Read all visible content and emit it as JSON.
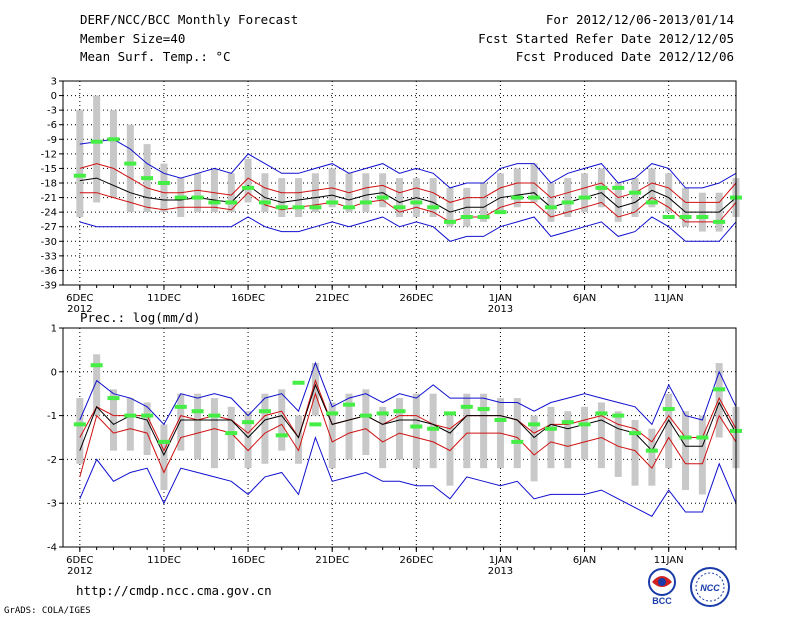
{
  "header": {
    "title": "DERF/NCC/BCC Monthly Forecast",
    "member_size": "Member Size=40",
    "variable": "Mean Surf. Temp.: °C",
    "period": "For 2012/12/06-2013/01/14",
    "fcst_started": "Fcst Started Refer Date 2012/12/05",
    "fcst_produced": "Fcst Produced Date 2012/12/06"
  },
  "footer": {
    "url": "http://cmdp.ncc.cma.gov.cn",
    "credit": "GrADS: COLA/IGES",
    "logo_bcc": "BCC",
    "logo_ncc": "NCC"
  },
  "colors": {
    "outer": "#1010d0",
    "inner": "#d01010",
    "mean": "#000000",
    "box": "#c8c8c8",
    "obs": "#44ee44"
  },
  "chart_data": [
    {
      "type": "line",
      "title": "Mean Surf. Temp.: °C",
      "ylim": [
        -39,
        3
      ],
      "yticks": [
        "3",
        "0",
        "-3",
        "-6",
        "-9",
        "-12",
        "-15",
        "-18",
        "-21",
        "-24",
        "-27",
        "-30",
        "-33",
        "-36",
        "-39"
      ],
      "xlim": [
        0,
        40
      ],
      "xticks": [
        {
          "day": 1,
          "label": "6DEC",
          "sub": "2012"
        },
        {
          "day": 6,
          "label": "11DEC"
        },
        {
          "day": 11,
          "label": "16DEC"
        },
        {
          "day": 16,
          "label": "21DEC"
        },
        {
          "day": 21,
          "label": "26DEC"
        },
        {
          "day": 26,
          "label": "1JAN",
          "sub": "2013"
        },
        {
          "day": 31,
          "label": "6JAN"
        },
        {
          "day": 36,
          "label": "11JAN"
        }
      ],
      "days": [
        1,
        2,
        3,
        4,
        5,
        6,
        7,
        8,
        9,
        10,
        11,
        12,
        13,
        14,
        15,
        16,
        17,
        18,
        19,
        20,
        21,
        22,
        23,
        24,
        25,
        26,
        27,
        28,
        29,
        30,
        31,
        32,
        33,
        34,
        35,
        36,
        37,
        38,
        39,
        40
      ],
      "series": [
        {
          "name": "upper_outer",
          "values": [
            -10,
            -9.5,
            -9,
            -11,
            -14,
            -16,
            -17,
            -16,
            -15,
            -16,
            -12,
            -14,
            -16,
            -16,
            -15,
            -14,
            -16,
            -15,
            -14,
            -16,
            -15,
            -16,
            -19,
            -18,
            -18,
            -15,
            -14,
            -14,
            -18,
            -16,
            -15,
            -14,
            -18,
            -17,
            -14,
            -15,
            -19,
            -19,
            -18,
            -16
          ]
        },
        {
          "name": "upper_inner",
          "values": [
            -15,
            -14,
            -15,
            -17,
            -19,
            -20,
            -20,
            -19.5,
            -20,
            -20.5,
            -17,
            -19,
            -20,
            -20,
            -19.5,
            -19,
            -20,
            -19,
            -18.5,
            -20,
            -19,
            -20,
            -22,
            -21,
            -21,
            -19,
            -18,
            -18,
            -21,
            -20,
            -19,
            -18,
            -21,
            -20,
            -18,
            -19,
            -22,
            -22,
            -22,
            -18
          ]
        },
        {
          "name": "mean",
          "values": [
            -17.5,
            -17,
            -18.5,
            -20,
            -21,
            -21.5,
            -21.5,
            -21,
            -21.5,
            -22,
            -18.5,
            -21,
            -22,
            -21.5,
            -21,
            -20.5,
            -21.5,
            -20.5,
            -20,
            -22,
            -21,
            -22,
            -24,
            -23,
            -23,
            -21,
            -20.5,
            -20,
            -23,
            -22,
            -21,
            -20,
            -23,
            -22,
            -19.5,
            -21,
            -24,
            -24,
            -24,
            -21
          ]
        },
        {
          "name": "lower_inner",
          "values": [
            -20,
            -20,
            -21,
            -22,
            -23,
            -23.5,
            -23,
            -23,
            -23,
            -23.5,
            -20,
            -22.5,
            -23.5,
            -23,
            -22.5,
            -22,
            -23,
            -22,
            -21.5,
            -24,
            -23,
            -24,
            -26,
            -25,
            -25,
            -23,
            -22,
            -22,
            -25,
            -24,
            -23,
            -22,
            -25,
            -24,
            -21,
            -23,
            -26,
            -26,
            -26,
            -22
          ]
        },
        {
          "name": "lower_outer",
          "values": [
            -26,
            -27,
            -27,
            -27,
            -27,
            -27,
            -27,
            -27,
            -27,
            -27,
            -25,
            -27,
            -28,
            -28,
            -27,
            -26,
            -27,
            -26,
            -25,
            -27,
            -26,
            -27,
            -30,
            -29,
            -29,
            -27,
            -26,
            -25,
            -29,
            -28,
            -27,
            -26,
            -29,
            -28,
            -25,
            -27,
            -30,
            -30,
            -30,
            -26
          ]
        }
      ],
      "box_ranges": [
        [
          -25,
          -3
        ],
        [
          -22,
          0
        ],
        [
          -21,
          -3
        ],
        [
          -24,
          -6
        ],
        [
          -24,
          -10
        ],
        [
          -24,
          -14
        ],
        [
          -25,
          -17
        ],
        [
          -24,
          -16
        ],
        [
          -24,
          -15
        ],
        [
          -24,
          -16
        ],
        [
          -22,
          -13
        ],
        [
          -24,
          -16
        ],
        [
          -25,
          -17
        ],
        [
          -25,
          -17
        ],
        [
          -24,
          -16
        ],
        [
          -23,
          -15
        ],
        [
          -24,
          -16
        ],
        [
          -24,
          -16
        ],
        [
          -23,
          -16
        ],
        [
          -25,
          -17
        ],
        [
          -25,
          -17
        ],
        [
          -25,
          -17
        ],
        [
          -27,
          -19
        ],
        [
          -27,
          -19
        ],
        [
          -26,
          -18
        ],
        [
          -24,
          -16
        ],
        [
          -23,
          -15
        ],
        [
          -22,
          -14
        ],
        [
          -26,
          -18
        ],
        [
          -25,
          -17
        ],
        [
          -24,
          -16
        ],
        [
          -23,
          -15
        ],
        [
          -26,
          -18
        ],
        [
          -25,
          -17
        ],
        [
          -23,
          -15
        ],
        [
          -24,
          -16
        ],
        [
          -27,
          -19
        ],
        [
          -28,
          -20
        ],
        [
          -28,
          -20
        ],
        [
          -25,
          -17
        ]
      ],
      "observed": [
        -16.5,
        -9.5,
        -9,
        -14,
        -17,
        -18,
        -21,
        -21,
        -22,
        -22,
        -19,
        -22,
        -23,
        -23,
        -23,
        -22,
        -23,
        -22,
        -21,
        -23,
        -22,
        -23,
        -26,
        -25,
        -25,
        -24,
        -21,
        -21,
        -23,
        -22,
        -21,
        -19,
        -19,
        -20,
        -22,
        -25,
        -25,
        -25,
        -26,
        -21
      ]
    },
    {
      "type": "line",
      "title": "Prec.: log(mm/d)",
      "ylim": [
        -4,
        1
      ],
      "yticks": [
        "1",
        "0",
        "-1",
        "-2",
        "-3",
        "-4"
      ],
      "xlim": [
        0,
        40
      ],
      "xticks": [
        {
          "day": 1,
          "label": "6DEC",
          "sub": "2012"
        },
        {
          "day": 6,
          "label": "11DEC"
        },
        {
          "day": 11,
          "label": "16DEC"
        },
        {
          "day": 16,
          "label": "21DEC"
        },
        {
          "day": 21,
          "label": "26DEC"
        },
        {
          "day": 26,
          "label": "1JAN",
          "sub": "2013"
        },
        {
          "day": 31,
          "label": "6JAN"
        },
        {
          "day": 36,
          "label": "11JAN"
        }
      ],
      "days": [
        1,
        2,
        3,
        4,
        5,
        6,
        7,
        8,
        9,
        10,
        11,
        12,
        13,
        14,
        15,
        16,
        17,
        18,
        19,
        20,
        21,
        22,
        23,
        24,
        25,
        26,
        27,
        28,
        29,
        30,
        31,
        32,
        33,
        34,
        35,
        36,
        37,
        38,
        39,
        40
      ],
      "series": [
        {
          "name": "upper_outer",
          "values": [
            -1.1,
            -0.2,
            -0.5,
            -0.6,
            -0.8,
            -1.2,
            -0.5,
            -0.6,
            -0.5,
            -0.6,
            -1.0,
            -0.6,
            -0.5,
            -0.9,
            0.2,
            -0.8,
            -0.6,
            -0.5,
            -0.7,
            -0.5,
            -0.6,
            -0.3,
            -0.6,
            -0.6,
            -0.6,
            -0.7,
            -0.7,
            -0.9,
            -0.7,
            -0.6,
            -0.5,
            -0.6,
            -0.7,
            -0.8,
            -1.2,
            -0.3,
            -1.0,
            -1.1,
            0.0,
            -0.8
          ]
        },
        {
          "name": "upper_inner",
          "values": [
            -1.5,
            -0.8,
            -1.0,
            -1.0,
            -1.0,
            -1.8,
            -1.0,
            -1.1,
            -1.0,
            -1.1,
            -1.4,
            -1.0,
            -0.9,
            -1.5,
            -0.2,
            -1.2,
            -1.1,
            -1.0,
            -1.2,
            -1.0,
            -1.0,
            -1.2,
            -1.3,
            -1.0,
            -1.0,
            -1.0,
            -1.1,
            -1.4,
            -1.2,
            -1.2,
            -1.1,
            -1.0,
            -1.2,
            -1.3,
            -1.6,
            -1.0,
            -1.5,
            -1.5,
            -0.6,
            -1.3
          ]
        },
        {
          "name": "mean",
          "values": [
            -1.8,
            -0.8,
            -1.2,
            -1.0,
            -1.1,
            -1.9,
            -1.1,
            -1.1,
            -1.1,
            -1.1,
            -1.5,
            -1.1,
            -1.0,
            -1.5,
            -0.3,
            -1.2,
            -1.1,
            -1.0,
            -1.2,
            -1.1,
            -1.1,
            -1.2,
            -1.4,
            -1.0,
            -1.0,
            -1.0,
            -1.1,
            -1.5,
            -1.2,
            -1.3,
            -1.2,
            -1.1,
            -1.3,
            -1.4,
            -1.8,
            -1.1,
            -1.7,
            -1.7,
            -0.7,
            -1.4
          ]
        },
        {
          "name": "lower_inner",
          "values": [
            -2.4,
            -1.0,
            -1.4,
            -1.3,
            -1.4,
            -2.3,
            -1.5,
            -1.4,
            -1.3,
            -1.4,
            -1.8,
            -1.4,
            -1.2,
            -1.8,
            -0.5,
            -1.6,
            -1.4,
            -1.3,
            -1.6,
            -1.4,
            -1.5,
            -1.6,
            -1.8,
            -1.4,
            -1.4,
            -1.4,
            -1.5,
            -1.9,
            -1.6,
            -1.7,
            -1.6,
            -1.5,
            -1.7,
            -1.8,
            -2.2,
            -1.5,
            -2.1,
            -2.1,
            -1.0,
            -1.6
          ]
        },
        {
          "name": "lower_outer",
          "values": [
            -2.9,
            -2.0,
            -2.5,
            -2.3,
            -2.2,
            -3.0,
            -2.2,
            -2.3,
            -2.4,
            -2.5,
            -2.8,
            -2.4,
            -2.3,
            -2.8,
            -1.5,
            -2.5,
            -2.4,
            -2.3,
            -2.5,
            -2.5,
            -2.6,
            -2.6,
            -2.9,
            -2.4,
            -2.5,
            -2.6,
            -2.5,
            -2.9,
            -2.8,
            -2.8,
            -2.8,
            -2.7,
            -2.9,
            -3.1,
            -3.3,
            -2.7,
            -3.2,
            -3.2,
            -2.1,
            -3.0
          ]
        }
      ],
      "box_ranges": [
        [
          -2.1,
          -0.6
        ],
        [
          -1.0,
          0.4
        ],
        [
          -1.8,
          -0.4
        ],
        [
          -1.8,
          -0.6
        ],
        [
          -1.9,
          -0.7
        ],
        [
          -2.7,
          -1.2
        ],
        [
          -1.8,
          -0.5
        ],
        [
          -2.0,
          -0.5
        ],
        [
          -2.2,
          -0.6
        ],
        [
          -2.0,
          -0.8
        ],
        [
          -2.2,
          -0.9
        ],
        [
          -2.1,
          -0.5
        ],
        [
          -1.8,
          -0.4
        ],
        [
          -2.1,
          -1.0
        ],
        [
          -1.0,
          0.2
        ],
        [
          -2.2,
          -0.7
        ],
        [
          -2.0,
          -0.5
        ],
        [
          -1.9,
          -0.4
        ],
        [
          -2.2,
          -0.8
        ],
        [
          -2.0,
          -0.6
        ],
        [
          -2.2,
          -0.5
        ],
        [
          -2.2,
          -0.5
        ],
        [
          -2.6,
          -1.0
        ],
        [
          -2.2,
          -0.5
        ],
        [
          -2.2,
          -0.5
        ],
        [
          -2.2,
          -0.6
        ],
        [
          -2.2,
          -0.6
        ],
        [
          -2.5,
          -1.0
        ],
        [
          -2.2,
          -0.8
        ],
        [
          -2.2,
          -0.9
        ],
        [
          -2.0,
          -0.8
        ],
        [
          -2.2,
          -0.7
        ],
        [
          -2.4,
          -0.9
        ],
        [
          -2.6,
          -1.1
        ],
        [
          -2.6,
          -1.3
        ],
        [
          -2.2,
          -0.5
        ],
        [
          -2.7,
          -0.9
        ],
        [
          -2.8,
          -1.0
        ],
        [
          -1.5,
          0.2
        ],
        [
          -2.2,
          -0.8
        ]
      ],
      "observed": [
        -1.2,
        0.15,
        -0.6,
        -1.0,
        -1.0,
        -1.6,
        -0.8,
        -0.9,
        -1.0,
        -1.4,
        -1.15,
        -0.9,
        -1.45,
        -0.25,
        -1.2,
        -0.95,
        -0.75,
        -1.0,
        -0.95,
        -0.9,
        -1.25,
        -1.3,
        -0.95,
        -0.8,
        -0.85,
        -1.1,
        -1.6,
        -1.2,
        -1.3,
        -1.15,
        -1.2,
        -0.95,
        -1.0,
        -1.4,
        -1.8,
        -0.85,
        -1.5,
        -1.5,
        -0.4,
        -1.35
      ]
    }
  ]
}
